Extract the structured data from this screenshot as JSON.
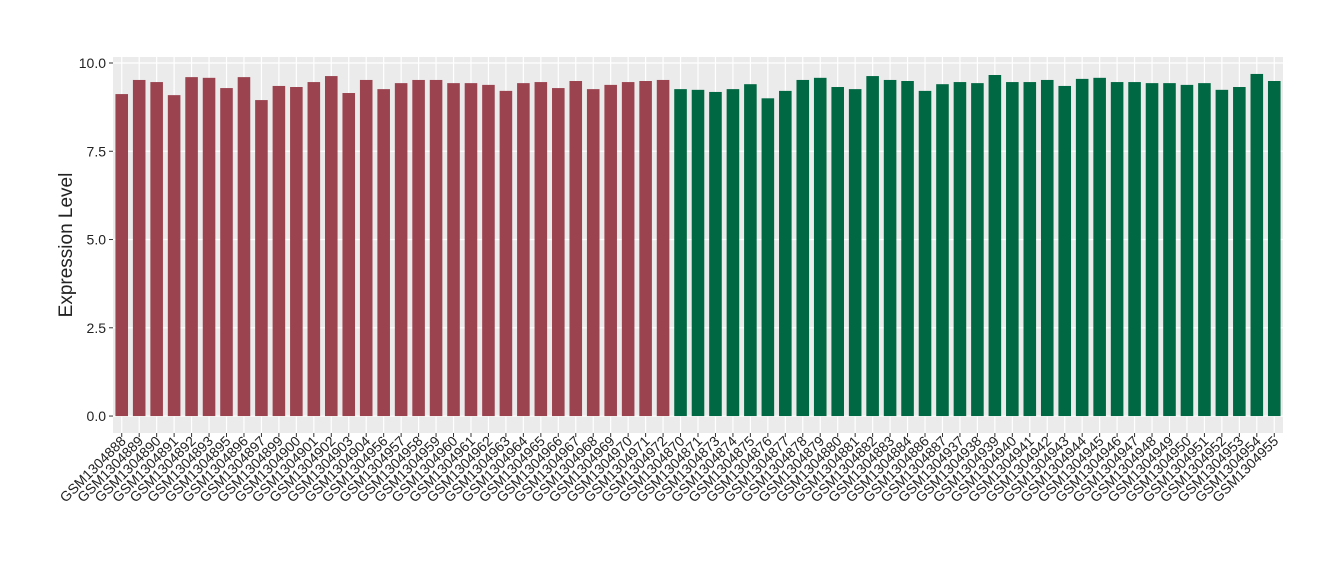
{
  "chart_data": {
    "type": "bar",
    "y_label": "Expression Level",
    "categories": [
      "GSM1304888",
      "GSM1304889",
      "GSM1304890",
      "GSM1304891",
      "GSM1304892",
      "GSM1304893",
      "GSM1304895",
      "GSM1304896",
      "GSM1304897",
      "GSM1304899",
      "GSM1304900",
      "GSM1304901",
      "GSM1304902",
      "GSM1304903",
      "GSM1304904",
      "GSM1304956",
      "GSM1304957",
      "GSM1304958",
      "GSM1304959",
      "GSM1304960",
      "GSM1304961",
      "GSM1304962",
      "GSM1304963",
      "GSM1304964",
      "GSM1304965",
      "GSM1304966",
      "GSM1304967",
      "GSM1304968",
      "GSM1304969",
      "GSM1304970",
      "GSM1304971",
      "GSM1304972",
      "GSM1304870",
      "GSM1304871",
      "GSM1304873",
      "GSM1304874",
      "GSM1304875",
      "GSM1304876",
      "GSM1304877",
      "GSM1304878",
      "GSM1304879",
      "GSM1304880",
      "GSM1304881",
      "GSM1304882",
      "GSM1304883",
      "GSM1304884",
      "GSM1304886",
      "GSM1304887",
      "GSM1304937",
      "GSM1304938",
      "GSM1304939",
      "GSM1304940",
      "GSM1304941",
      "GSM1304942",
      "GSM1304943",
      "GSM1304944",
      "GSM1304945",
      "GSM1304946",
      "GSM1304947",
      "GSM1304948",
      "GSM1304949",
      "GSM1304950",
      "GSM1304951",
      "GSM1304952",
      "GSM1304953",
      "GSM1304954",
      "GSM1304955"
    ],
    "values": [
      9.12,
      9.52,
      9.46,
      9.09,
      9.6,
      9.58,
      9.29,
      9.6,
      8.95,
      9.35,
      9.32,
      9.46,
      9.63,
      9.15,
      9.52,
      9.26,
      9.43,
      9.52,
      9.52,
      9.43,
      9.43,
      9.38,
      9.21,
      9.43,
      9.46,
      9.29,
      9.49,
      9.26,
      9.38,
      9.46,
      9.49,
      9.52,
      9.26,
      9.24,
      9.18,
      9.26,
      9.4,
      9.0,
      9.21,
      9.52,
      9.58,
      9.32,
      9.26,
      9.63,
      9.52,
      9.49,
      9.21,
      9.4,
      9.46,
      9.43,
      9.66,
      9.46,
      9.46,
      9.52,
      9.35,
      9.55,
      9.58,
      9.46,
      9.46,
      9.43,
      9.43,
      9.38,
      9.43,
      9.24,
      9.32,
      9.69,
      9.49
    ],
    "colors": [
      "#9b4450",
      "#9b4450",
      "#9b4450",
      "#9b4450",
      "#9b4450",
      "#9b4450",
      "#9b4450",
      "#9b4450",
      "#9b4450",
      "#9b4450",
      "#9b4450",
      "#9b4450",
      "#9b4450",
      "#9b4450",
      "#9b4450",
      "#9b4450",
      "#9b4450",
      "#9b4450",
      "#9b4450",
      "#9b4450",
      "#9b4450",
      "#9b4450",
      "#9b4450",
      "#9b4450",
      "#9b4450",
      "#9b4450",
      "#9b4450",
      "#9b4450",
      "#9b4450",
      "#9b4450",
      "#9b4450",
      "#9b4450",
      "#006843",
      "#006843",
      "#006843",
      "#006843",
      "#006843",
      "#006843",
      "#006843",
      "#006843",
      "#006843",
      "#006843",
      "#006843",
      "#006843",
      "#006843",
      "#006843",
      "#006843",
      "#006843",
      "#006843",
      "#006843",
      "#006843",
      "#006843",
      "#006843",
      "#006843",
      "#006843",
      "#006843",
      "#006843",
      "#006843",
      "#006843",
      "#006843",
      "#006843",
      "#006843",
      "#006843",
      "#006843",
      "#006843",
      "#006843",
      "#006843"
    ],
    "ylim": [
      -0.48,
      10.17
    ],
    "yticks": [
      {
        "value": 0,
        "label": "0.0"
      },
      2.5,
      {
        "value": 5,
        "label": "5.0"
      },
      7.5,
      {
        "value": 10,
        "label": "10.0"
      }
    ],
    "grid": true
  }
}
